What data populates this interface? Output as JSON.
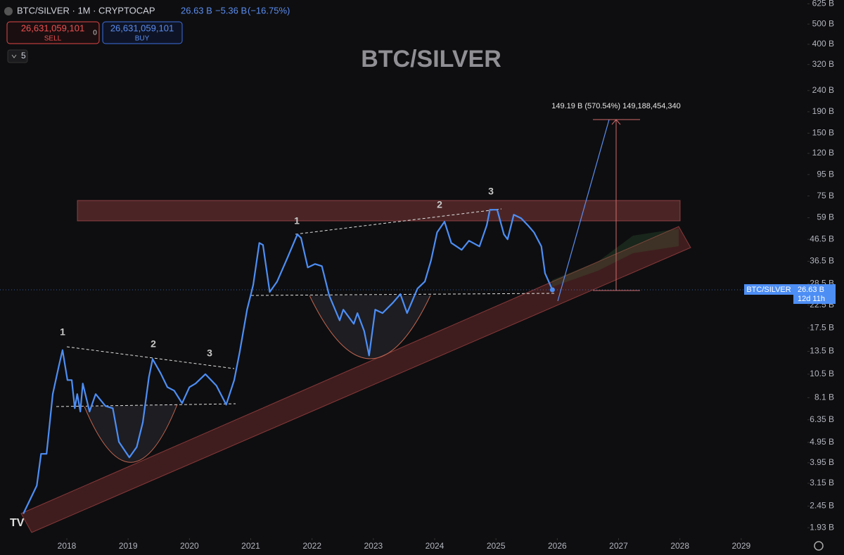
{
  "header": {
    "title": "BTC/SILVER · 1M · CRYPTOCAP",
    "last": "26.63 B",
    "change": "−5.36 B",
    "change_pct": "(−16.75%)",
    "sell_price": "26,631,059,101",
    "sell": "SELL",
    "spread": "0",
    "buy_price": "26,631,059,101",
    "buy": "BUY",
    "indicators": "5"
  },
  "chart_data": {
    "type": "line",
    "title": "BTC/SILVER",
    "x": [
      2017.29,
      2017.51,
      2017.58,
      2017.67,
      2017.77,
      2017.87,
      2017.93,
      2018.01,
      2018.08,
      2018.13,
      2018.17,
      2018.22,
      2018.26,
      2018.37,
      2018.47,
      2018.63,
      2018.75,
      2018.85,
      2019.02,
      2019.14,
      2019.24,
      2019.34,
      2019.4,
      2019.53,
      2019.64,
      2019.75,
      2019.88,
      2020.0,
      2020.1,
      2020.26,
      2020.44,
      2020.6,
      2020.73,
      2020.82,
      2020.94,
      2021.04,
      2021.14,
      2021.2,
      2021.31,
      2021.43,
      2021.59,
      2021.76,
      2021.82,
      2021.93,
      2022.05,
      2022.16,
      2022.28,
      2022.45,
      2022.51,
      2022.68,
      2022.74,
      2022.85,
      2022.93,
      2023.03,
      2023.15,
      2023.32,
      2023.44,
      2023.55,
      2023.72,
      2023.84,
      2023.94,
      2024.04,
      2024.16,
      2024.27,
      2024.44,
      2024.56,
      2024.73,
      2024.85,
      2024.9,
      2025.02,
      2025.13,
      2025.19,
      2025.29,
      2025.41,
      2025.52,
      2025.62,
      2025.74,
      2025.8,
      2025.92
    ],
    "series": [
      {
        "name": "BTC/SILVER",
        "color": "#4d8ef5",
        "values": [
          2.25,
          3.07,
          4.36,
          4.36,
          8.43,
          11.5,
          13.7,
          9.84,
          9.84,
          7.21,
          8.43,
          6.95,
          9.47,
          6.95,
          8.43,
          7.39,
          7.21,
          4.97,
          4.19,
          4.7,
          6.18,
          10.2,
          12.4,
          10.6,
          9.1,
          8.76,
          7.62,
          9.1,
          9.47,
          10.5,
          9.25,
          7.5,
          9.84,
          13.4,
          21.4,
          28.1,
          44.7,
          43.7,
          26.0,
          29.2,
          37.4,
          49.1,
          47.2,
          34.1,
          35.4,
          34.6,
          25.0,
          19.0,
          21.4,
          18.3,
          20.6,
          16.9,
          12.9,
          21.4,
          20.6,
          23.1,
          25.4,
          20.6,
          27.0,
          29.2,
          36.8,
          50.2,
          56.5,
          44.7,
          41.4,
          45.8,
          43.0,
          54.3,
          64.4,
          64.4,
          49.1,
          46.5,
          61.0,
          58.7,
          54.3,
          50.2,
          43.0,
          32.0,
          26.63
        ]
      }
    ],
    "xlim": [
      2016.91,
      2030.08
    ],
    "xticks": [
      2018,
      2019,
      2020,
      2021,
      2022,
      2023,
      2024,
      2025,
      2026,
      2027,
      2028,
      2029
    ],
    "ylim": [
      1.72,
      652
    ],
    "log_scale": true,
    "grid": false,
    "yticks": [
      {
        "value": 625,
        "label": "625 B"
      },
      {
        "value": 500,
        "label": "500 B"
      },
      {
        "value": 400,
        "label": "400 B"
      },
      {
        "value": 320,
        "label": "320 B"
      },
      {
        "value": 240,
        "label": "240 B"
      },
      {
        "value": 190,
        "label": "190 B"
      },
      {
        "value": 150,
        "label": "150 B"
      },
      {
        "value": 120,
        "label": "120 B"
      },
      {
        "value": 95,
        "label": "95 B"
      },
      {
        "value": 75,
        "label": "75 B"
      },
      {
        "value": 59,
        "label": "59 B"
      },
      {
        "value": 46.5,
        "label": "46.5 B"
      },
      {
        "value": 36.5,
        "label": "36.5 B"
      },
      {
        "value": 28.5,
        "label": "28.5 B"
      },
      {
        "value": 22.5,
        "label": "22.5 B"
      },
      {
        "value": 17.5,
        "label": "17.5 B"
      },
      {
        "value": 13.5,
        "label": "13.5 B"
      },
      {
        "value": 10.5,
        "label": "10.5 B"
      },
      {
        "value": 8.1,
        "label": "8.1 B"
      },
      {
        "value": 6.35,
        "label": "6.35 B"
      },
      {
        "value": 4.95,
        "label": "4.95 B"
      },
      {
        "value": 3.95,
        "label": "3.95 B"
      },
      {
        "value": 3.15,
        "label": "3.15 B"
      },
      {
        "value": 2.45,
        "label": "2.45 B"
      },
      {
        "value": 1.93,
        "label": "1.93 B"
      }
    ],
    "last_label": "26.63 B",
    "countdown": "12d 11h",
    "annotations": [
      "1",
      "2",
      "3",
      "1",
      "2",
      "3"
    ],
    "measure": "149.19 B (570.54%) 149,188,454,340"
  }
}
